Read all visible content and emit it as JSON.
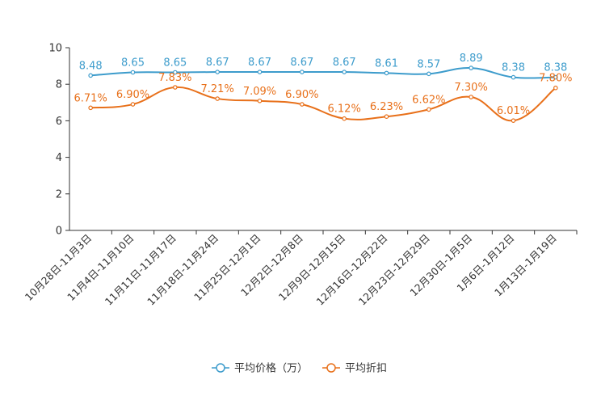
{
  "chart_data": {
    "type": "line",
    "title": "",
    "xlabel": "",
    "ylabel": "",
    "ylim": [
      0,
      10
    ],
    "yticks": [
      0,
      2,
      4,
      6,
      8,
      10
    ],
    "grid": false,
    "legend_position": "bottom",
    "categories": [
      "10月28日-11月3日",
      "11月4日-11月10日",
      "11月11日-11月17日",
      "11月18日-11月24日",
      "11月25日-12月1日",
      "12月2日-12月8日",
      "12月9日-12月15日",
      "12月16日-12月22日",
      "12月23日-12月29日",
      "12月30日-1月5日",
      "1月6日-1月12日",
      "1月13日-1月19日"
    ],
    "series": [
      {
        "name": "平均价格（万）",
        "color": "#3d9ccc",
        "values": [
          8.48,
          8.65,
          8.65,
          8.67,
          8.67,
          8.67,
          8.67,
          8.61,
          8.57,
          8.89,
          8.38,
          8.38
        ],
        "labels": [
          "8.48",
          "8.65",
          "8.65",
          "8.67",
          "8.67",
          "8.67",
          "8.67",
          "8.61",
          "8.57",
          "8.89",
          "8.38",
          "8.38"
        ]
      },
      {
        "name": "平均折扣",
        "color": "#e8701a",
        "values": [
          6.71,
          6.9,
          7.83,
          7.21,
          7.09,
          6.9,
          6.12,
          6.23,
          6.62,
          7.3,
          6.01,
          7.8
        ],
        "labels": [
          "6.71%",
          "6.90%",
          "7.83%",
          "7.21%",
          "7.09%",
          "6.90%",
          "6.12%",
          "6.23%",
          "6.62%",
          "7.30%",
          "6.01%",
          "7.80%"
        ]
      }
    ]
  }
}
